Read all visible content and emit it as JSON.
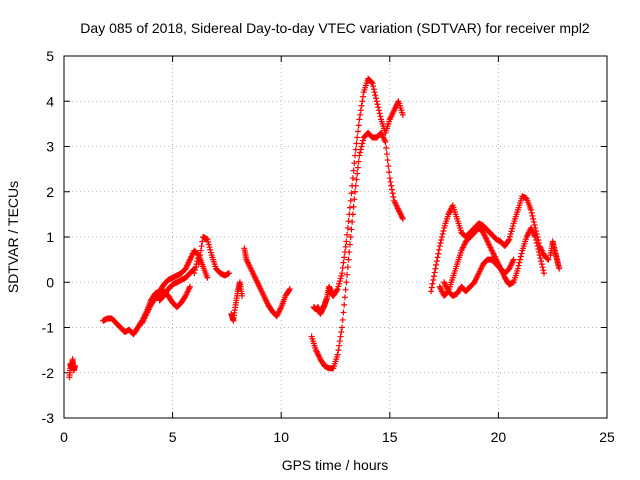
{
  "chart_data": {
    "type": "scatter",
    "title": "Day 085 of 2018, Sidereal Day-to-day VTEC variation (SDTVAR) for receiver mpl2",
    "xlabel": "GPS time / hours",
    "ylabel": "SDTVAR / TECUs",
    "xlim": [
      0,
      25
    ],
    "ylim": [
      -3,
      5
    ],
    "xticks": [
      0,
      5,
      10,
      15,
      20,
      25
    ],
    "yticks": [
      -3,
      -2,
      -1,
      0,
      1,
      2,
      3,
      4,
      5
    ],
    "grid": true,
    "marker": "plus",
    "color": "#ff0000",
    "series": [
      {
        "x": [
          0.25,
          0.3,
          0.35,
          0.4,
          0.45,
          0.5
        ],
        "y": [
          -2.1,
          -1.8,
          -1.9,
          -1.7,
          -1.95,
          -1.85
        ]
      },
      {
        "x": [
          1.8,
          2.0,
          2.2,
          2.4,
          2.6,
          2.8,
          3.0,
          3.2,
          3.4,
          3.6,
          3.8,
          4.0,
          4.2,
          4.4,
          4.6,
          4.8,
          5.0,
          5.2,
          5.4,
          5.6,
          5.8,
          6.0,
          6.2
        ],
        "y": [
          -0.85,
          -0.8,
          -0.8,
          -0.9,
          -1.0,
          -1.1,
          -1.05,
          -1.15,
          -1.0,
          -0.85,
          -0.65,
          -0.4,
          -0.25,
          -0.2,
          -0.05,
          0.05,
          0.1,
          0.15,
          0.2,
          0.3,
          0.5,
          0.7,
          0.6
        ]
      },
      {
        "x": [
          3.6,
          3.8,
          4.0,
          4.2,
          4.4,
          4.6,
          4.8,
          5.0,
          5.2,
          5.4,
          5.6,
          5.8
        ],
        "y": [
          -0.9,
          -0.7,
          -0.5,
          -0.35,
          -0.3,
          -0.2,
          -0.3,
          -0.45,
          -0.55,
          -0.45,
          -0.3,
          -0.1
        ]
      },
      {
        "x": [
          4.4,
          4.6,
          4.8,
          5.0,
          5.2,
          5.4,
          5.6,
          5.8,
          6.0
        ],
        "y": [
          -0.4,
          -0.3,
          -0.15,
          -0.05,
          0.0,
          0.05,
          0.1,
          0.2,
          0.3
        ]
      },
      {
        "x": [
          6.2,
          6.4,
          6.6,
          6.8,
          7.0,
          7.2,
          7.4,
          7.6
        ],
        "y": [
          0.4,
          1.0,
          0.95,
          0.6,
          0.3,
          0.2,
          0.15,
          0.2
        ]
      },
      {
        "x": [
          6.0,
          6.2,
          6.4,
          6.6
        ],
        "y": [
          0.2,
          0.6,
          0.35,
          0.1
        ]
      },
      {
        "x": [
          7.7,
          7.8,
          7.9,
          8.0,
          8.1,
          8.2
        ],
        "y": [
          -0.7,
          -0.85,
          -0.5,
          -0.2,
          0.0,
          -0.3
        ]
      },
      {
        "x": [
          8.3,
          8.4,
          8.6,
          8.8,
          9.0,
          9.2,
          9.4,
          9.6,
          9.8,
          10.0,
          10.2,
          10.4
        ],
        "y": [
          0.75,
          0.5,
          0.3,
          0.1,
          -0.1,
          -0.3,
          -0.5,
          -0.65,
          -0.75,
          -0.55,
          -0.3,
          -0.15
        ]
      },
      {
        "x": [
          11.5,
          11.6,
          11.7,
          11.8,
          11.9,
          12.0,
          12.1,
          12.2,
          12.3
        ],
        "y": [
          -0.55,
          -0.6,
          -0.55,
          -0.7,
          -0.6,
          -0.5,
          -0.35,
          -0.1,
          -0.2
        ]
      },
      {
        "x": [
          11.4,
          11.6,
          11.8,
          12.0,
          12.2,
          12.4,
          12.6,
          12.8,
          13.0,
          13.2,
          13.4,
          13.6,
          13.8,
          14.0,
          14.2,
          14.4,
          14.6,
          14.8,
          15.0,
          15.2,
          15.4,
          15.6
        ],
        "y": [
          -1.2,
          -1.5,
          -1.7,
          -1.85,
          -1.9,
          -1.9,
          -1.6,
          -1.0,
          0.0,
          1.0,
          2.0,
          2.8,
          3.2,
          3.3,
          3.2,
          3.2,
          3.3,
          3.1,
          2.3,
          1.8,
          1.6,
          1.4
        ]
      },
      {
        "x": [
          12.2,
          12.4,
          12.6,
          12.8,
          13.0,
          13.2,
          13.4,
          13.6,
          13.8,
          14.0,
          14.2,
          14.4,
          14.6,
          14.8,
          15.0,
          15.2,
          15.4,
          15.6
        ],
        "y": [
          -0.2,
          -0.3,
          -0.15,
          0.2,
          0.9,
          1.8,
          2.8,
          3.6,
          4.2,
          4.5,
          4.4,
          4.0,
          3.6,
          3.3,
          3.6,
          3.8,
          4.0,
          3.7
        ]
      },
      {
        "x": [
          16.9,
          17.1,
          17.3,
          17.5,
          17.7,
          17.9,
          18.1,
          18.3,
          18.5,
          18.7,
          18.9,
          19.1,
          19.3,
          19.5,
          19.7,
          19.9,
          20.1,
          20.3,
          20.5,
          20.7,
          20.9,
          21.1,
          21.3,
          21.5,
          21.7,
          21.9,
          22.1,
          22.3
        ],
        "y": [
          -0.2,
          0.3,
          0.8,
          1.2,
          1.5,
          1.7,
          1.4,
          1.1,
          1.0,
          1.1,
          1.2,
          1.3,
          1.25,
          1.15,
          1.05,
          0.95,
          0.9,
          0.8,
          0.95,
          1.3,
          1.6,
          1.9,
          1.85,
          1.6,
          1.2,
          0.8,
          0.6,
          0.5
        ]
      },
      {
        "x": [
          17.3,
          17.5,
          17.7,
          17.9,
          18.1,
          18.3,
          18.5,
          18.7,
          18.9,
          19.1,
          19.3,
          19.5,
          19.7,
          19.9,
          20.1,
          20.3,
          20.5,
          20.7,
          20.9,
          21.1,
          21.3,
          21.5,
          21.7,
          21.9,
          22.1
        ],
        "y": [
          -0.1,
          -0.3,
          -0.2,
          0.1,
          0.4,
          0.7,
          0.9,
          1.0,
          1.1,
          1.2,
          1.1,
          0.9,
          0.7,
          0.5,
          0.3,
          0.1,
          -0.05,
          0.0,
          0.3,
          0.7,
          1.0,
          1.2,
          1.0,
          0.6,
          0.2
        ]
      },
      {
        "x": [
          17.5,
          17.7,
          17.9,
          18.1,
          18.3,
          18.5,
          18.7,
          18.9,
          19.1,
          19.3,
          19.5,
          19.7,
          19.9,
          20.1,
          20.3,
          20.5,
          20.7
        ],
        "y": [
          0.0,
          -0.2,
          -0.3,
          -0.25,
          -0.1,
          -0.2,
          -0.1,
          0.0,
          0.2,
          0.4,
          0.5,
          0.5,
          0.4,
          0.3,
          0.2,
          0.3,
          0.5
        ]
      },
      {
        "x": [
          22.4,
          22.5,
          22.6,
          22.7,
          22.8
        ],
        "y": [
          0.6,
          0.9,
          0.7,
          0.5,
          0.3
        ]
      }
    ]
  }
}
